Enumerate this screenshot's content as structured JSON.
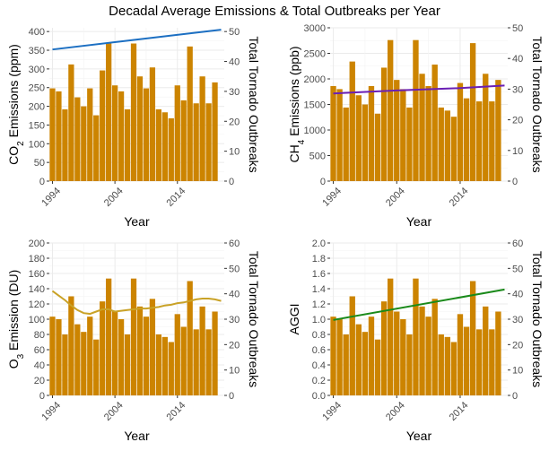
{
  "title": "Decadal Average Emissions & Total Outbreaks per Year",
  "colors": {
    "bar": "#CC8400",
    "panel_bg": "#ffffff",
    "grid": "#ebebeb"
  },
  "chart_data": [
    {
      "type": "bar",
      "xlabel": "Year",
      "ylabel": "CO2 Emissions (ppm)",
      "ylabel_main": "CO",
      "ylabel_sub": "2",
      "ylabel_rest": " Emissions (ppm)",
      "y2label": "Total Tornado Outbreaks",
      "x_ticks": [
        1994,
        2004,
        2014
      ],
      "y_ticks": [
        "0",
        "50",
        "100",
        "150",
        "200",
        "250",
        "300",
        "350",
        "400"
      ],
      "y_lim": [
        0,
        410
      ],
      "y2_ticks": [
        "0",
        "10",
        "20",
        "30",
        "40",
        "50"
      ],
      "y2_lim": [
        0,
        51.25
      ],
      "x": [
        1994,
        1995,
        1996,
        1997,
        1998,
        1999,
        2000,
        2001,
        2002,
        2003,
        2004,
        2005,
        2006,
        2007,
        2008,
        2009,
        2010,
        2011,
        2012,
        2013,
        2014,
        2015,
        2016,
        2017,
        2018,
        2019,
        2020,
        2021
      ],
      "outbreaks": [
        31,
        30,
        24,
        39,
        28,
        25,
        31,
        22,
        37,
        46,
        32,
        30,
        24,
        46,
        35,
        31,
        38,
        24,
        23,
        21,
        32,
        27,
        45,
        26,
        35,
        26,
        33,
        0
      ],
      "line_series": {
        "name": "CO2",
        "color": "#1C6FC2",
        "x": [
          1994,
          2021
        ],
        "values": [
          352,
          405
        ]
      }
    },
    {
      "type": "bar",
      "xlabel": "Year",
      "ylabel": "CH4 Emissions (ppb)",
      "ylabel_main": "CH",
      "ylabel_sub": "4",
      "ylabel_rest": " Emissions (ppb)",
      "y2label": "Total Tornado Outbreaks",
      "x_ticks": [
        1994,
        2004,
        2014
      ],
      "y_ticks": [
        "0",
        "500",
        "1000",
        "1500",
        "2000",
        "2500",
        "3000"
      ],
      "y_lim": [
        0,
        3000
      ],
      "y2_ticks": [
        "0",
        "10",
        "20",
        "30",
        "40",
        "50"
      ],
      "y2_lim": [
        0,
        50
      ],
      "x": [
        1994,
        1995,
        1996,
        1997,
        1998,
        1999,
        2000,
        2001,
        2002,
        2003,
        2004,
        2005,
        2006,
        2007,
        2008,
        2009,
        2010,
        2011,
        2012,
        2013,
        2014,
        2015,
        2016,
        2017,
        2018,
        2019,
        2020,
        2021
      ],
      "outbreaks": [
        31,
        30,
        24,
        39,
        28,
        25,
        31,
        22,
        37,
        46,
        33,
        30,
        24,
        46,
        35,
        31,
        38,
        24,
        23,
        21,
        32,
        27,
        45,
        26,
        35,
        26,
        33,
        0
      ],
      "line_series": {
        "name": "CH4",
        "color": "#6A1FB5",
        "x": [
          1994,
          2004,
          2014,
          2021
        ],
        "values": [
          1715,
          1775,
          1820,
          1870
        ]
      }
    },
    {
      "type": "bar",
      "xlabel": "Year",
      "ylabel": "O3 Emission (DU)",
      "ylabel_main": "O",
      "ylabel_sub": "3",
      "ylabel_rest": " Emission (DU)",
      "y2label": "Total Tornado Outbreaks",
      "x_ticks": [
        1994,
        2004,
        2014
      ],
      "y_ticks": [
        "0",
        "20",
        "40",
        "60",
        "80",
        "100",
        "120",
        "140",
        "160",
        "180",
        "200"
      ],
      "y_lim": [
        0,
        200
      ],
      "y2_ticks": [
        "0",
        "10",
        "20",
        "30",
        "40",
        "50",
        "60"
      ],
      "y2_lim": [
        0,
        60
      ],
      "x": [
        1994,
        1995,
        1996,
        1997,
        1998,
        1999,
        2000,
        2001,
        2002,
        2003,
        2004,
        2005,
        2006,
        2007,
        2008,
        2009,
        2010,
        2011,
        2012,
        2013,
        2014,
        2015,
        2016,
        2017,
        2018,
        2019,
        2020,
        2021
      ],
      "outbreaks": [
        31,
        30,
        24,
        39,
        28,
        25,
        31,
        22,
        37,
        46,
        33,
        30,
        24,
        46,
        35,
        31,
        38,
        24,
        23,
        21,
        32,
        27,
        45,
        26,
        35,
        26,
        33,
        0
      ],
      "line_series": {
        "name": "O3",
        "color": "#C9A227",
        "x": [
          1994,
          1995,
          1996,
          1997,
          1998,
          1999,
          2000,
          2001,
          2002,
          2003,
          2004,
          2005,
          2006,
          2007,
          2008,
          2009,
          2010,
          2011,
          2012,
          2013,
          2014,
          2015,
          2016,
          2017,
          2018,
          2019,
          2020,
          2021
        ],
        "values": [
          137,
          131,
          125,
          118,
          112,
          108,
          107,
          110,
          113,
          113,
          110,
          111,
          112,
          113,
          114,
          114,
          115,
          116,
          118,
          119,
          121,
          122,
          124,
          126,
          127,
          127,
          126,
          124
        ]
      }
    },
    {
      "type": "bar",
      "xlabel": "Year",
      "ylabel": "AGGI",
      "ylabel_main": "AGGI",
      "ylabel_sub": "",
      "ylabel_rest": "",
      "y2label": "Total Tornado Outbreaks",
      "x_ticks": [
        1994,
        2004,
        2014
      ],
      "y_ticks": [
        "0.0",
        "0.2",
        "0.4",
        "0.6",
        "0.8",
        "1.0",
        "1.2",
        "1.4",
        "1.6",
        "1.8",
        "2.0"
      ],
      "y_lim": [
        0,
        2.0
      ],
      "y2_ticks": [
        "0",
        "10",
        "20",
        "30",
        "40",
        "50",
        "60"
      ],
      "y2_lim": [
        0,
        60
      ],
      "x": [
        1994,
        1995,
        1996,
        1997,
        1998,
        1999,
        2000,
        2001,
        2002,
        2003,
        2004,
        2005,
        2006,
        2007,
        2008,
        2009,
        2010,
        2011,
        2012,
        2013,
        2014,
        2015,
        2016,
        2017,
        2018,
        2019,
        2020,
        2021
      ],
      "outbreaks": [
        31,
        30,
        24,
        39,
        28,
        25,
        31,
        22,
        37,
        46,
        33,
        30,
        24,
        46,
        35,
        31,
        38,
        24,
        23,
        21,
        32,
        27,
        45,
        26,
        35,
        26,
        33,
        0
      ],
      "line_series": {
        "name": "AGGI",
        "color": "#1A8A1A",
        "x": [
          1994,
          2021
        ],
        "values": [
          0.99,
          1.39
        ]
      }
    }
  ]
}
